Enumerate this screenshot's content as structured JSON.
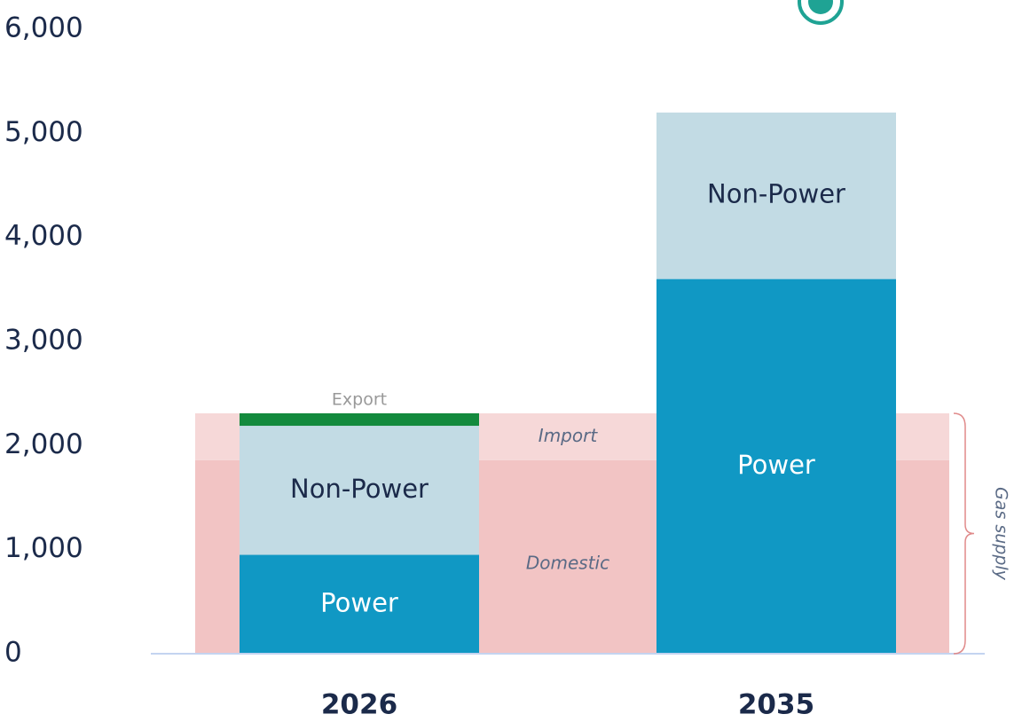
{
  "chart_data": {
    "type": "bar",
    "categories": [
      "2026",
      "2035"
    ],
    "series": [
      {
        "name": "Power",
        "color": "#1098c4",
        "values": [
          950,
          3600
        ]
      },
      {
        "name": "Non-Power",
        "color": "#c2dbe4",
        "values": [
          1240,
          1600
        ]
      },
      {
        "name": "Export",
        "color": "#138a3d",
        "values": [
          120,
          0
        ]
      }
    ],
    "supply": [
      {
        "name": "Domestic",
        "color": "#f2c4c4",
        "value": 1860
      },
      {
        "name": "Import",
        "color": "#f6d8d8",
        "value": 450
      }
    ],
    "supply_label": "Gas supply",
    "ylim": [
      0,
      6000
    ],
    "yticks": [
      0,
      {
        "value": 1000,
        "label": "1,000"
      },
      {
        "value": 2000,
        "label": "2,000"
      },
      {
        "value": 3000,
        "label": "3,000"
      },
      {
        "value": 4000,
        "label": "4,000"
      },
      {
        "value": 5000,
        "label": "5,000"
      },
      {
        "value": 6000,
        "label": "6,000"
      }
    ],
    "grid": false
  }
}
